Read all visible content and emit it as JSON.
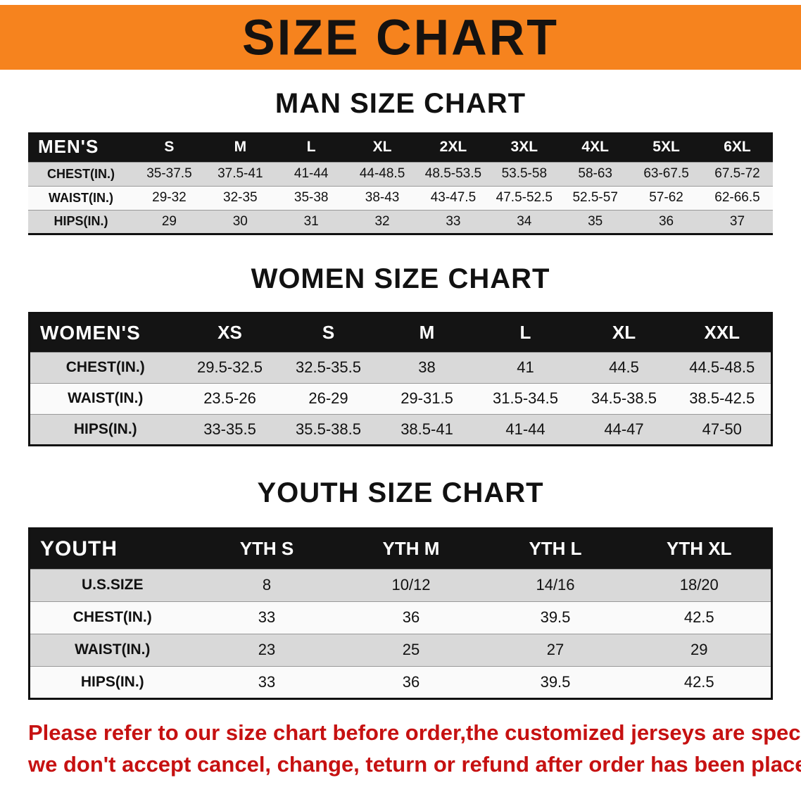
{
  "banner": {
    "title": "SIZE CHART"
  },
  "men": {
    "heading": "MAN SIZE CHART",
    "corner": "MEN'S",
    "columns": [
      "S",
      "M",
      "L",
      "XL",
      "2XL",
      "3XL",
      "4XL",
      "5XL",
      "6XL"
    ],
    "rows": [
      {
        "label": "CHEST(IN.)",
        "values": [
          "35-37.5",
          "37.5-41",
          "41-44",
          "44-48.5",
          "48.5-53.5",
          "53.5-58",
          "58-63",
          "63-67.5",
          "67.5-72"
        ]
      },
      {
        "label": "WAIST(IN.)",
        "values": [
          "29-32",
          "32-35",
          "35-38",
          "38-43",
          "43-47.5",
          "47.5-52.5",
          "52.5-57",
          "57-62",
          "62-66.5"
        ]
      },
      {
        "label": "HIPS(IN.)",
        "values": [
          "29",
          "30",
          "31",
          "32",
          "33",
          "34",
          "35",
          "36",
          "37"
        ]
      }
    ]
  },
  "women": {
    "heading": "WOMEN SIZE CHART",
    "corner": "WOMEN'S",
    "columns": [
      "XS",
      "S",
      "M",
      "L",
      "XL",
      "XXL"
    ],
    "rows": [
      {
        "label": "CHEST(IN.)",
        "values": [
          "29.5-32.5",
          "32.5-35.5",
          "38",
          "41",
          "44.5",
          "44.5-48.5"
        ]
      },
      {
        "label": "WAIST(IN.)",
        "values": [
          "23.5-26",
          "26-29",
          "29-31.5",
          "31.5-34.5",
          "34.5-38.5",
          "38.5-42.5"
        ]
      },
      {
        "label": "HIPS(IN.)",
        "values": [
          "33-35.5",
          "35.5-38.5",
          "38.5-41",
          "41-44",
          "44-47",
          "47-50"
        ]
      }
    ]
  },
  "youth": {
    "heading": "YOUTH SIZE CHART",
    "corner": "YOUTH",
    "columns": [
      "YTH S",
      "YTH M",
      "YTH L",
      "YTH XL"
    ],
    "rows": [
      {
        "label": "U.S.SIZE",
        "values": [
          "8",
          "10/12",
          "14/16",
          "18/20"
        ]
      },
      {
        "label": "CHEST(IN.)",
        "values": [
          "33",
          "36",
          "39.5",
          "42.5"
        ]
      },
      {
        "label": "WAIST(IN.)",
        "values": [
          "23",
          "25",
          "27",
          "29"
        ]
      },
      {
        "label": "HIPS(IN.)",
        "values": [
          "33",
          "36",
          "39.5",
          "42.5"
        ]
      }
    ]
  },
  "footer": {
    "line1": "Please refer to our size chart before order,the customized jerseys are special products,",
    "line2": "we don't accept cancel, change, teturn or refund after order has been placed!"
  },
  "colors": {
    "banner_bg": "#F6831E",
    "header_bg": "#141414",
    "row_alt": "#d9d9d9",
    "footer_text": "#c61111"
  }
}
